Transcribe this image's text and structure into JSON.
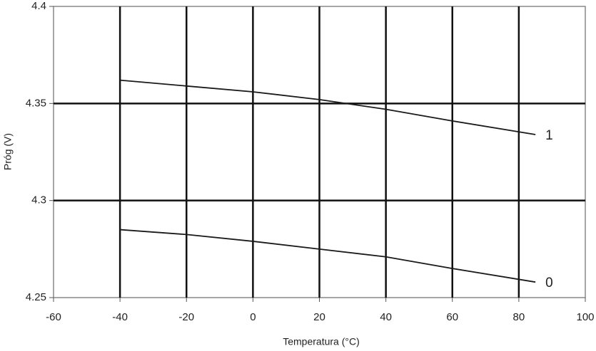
{
  "chart_data": {
    "type": "line",
    "x_label": "Temperatura (°C)",
    "y_label": "Próg (V)",
    "x": [
      -40,
      -20,
      0,
      20,
      40,
      60,
      85
    ],
    "series": [
      {
        "name": "1",
        "color": "#1a1a1a",
        "values": [
          4.362,
          4.359,
          4.356,
          4.352,
          4.347,
          4.341,
          4.334
        ]
      },
      {
        "name": "0",
        "color": "#1a1a1a",
        "values": [
          4.285,
          4.2825,
          4.279,
          4.275,
          4.271,
          4.265,
          4.258
        ]
      }
    ],
    "xlim": [
      -60,
      100
    ],
    "xticks": [
      -60,
      -40,
      -20,
      0,
      20,
      40,
      60,
      80,
      100
    ],
    "ylim": [
      4.25,
      4.4
    ],
    "yticks": [
      4.25,
      4.3,
      4.35,
      4.4
    ],
    "grid": true
  }
}
